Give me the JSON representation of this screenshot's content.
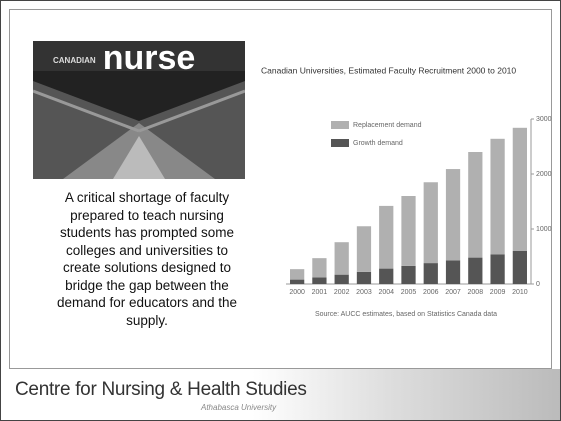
{
  "slide": {
    "cover": {
      "kicker": "CANADIAN",
      "title": "nurse"
    },
    "paragraph": [
      "A critical shortage of faculty",
      "prepared to teach nursing",
      "students has prompted some",
      "colleges and universities to",
      "create solutions designed to",
      "bridge the gap between the",
      "demand for educators and the",
      "supply."
    ],
    "footer": {
      "title": "Centre for Nursing & Health Studies",
      "subtitle": "Athabasca University"
    }
  },
  "chart_data": {
    "type": "stacked_bar",
    "title": "Canadian Universities, Estimated Faculty Recruitment 2000 to 2010",
    "categories": [
      "2000",
      "2001",
      "2002",
      "2003",
      "2004",
      "2005",
      "2006",
      "2007",
      "2008",
      "2009",
      "2010"
    ],
    "series": [
      {
        "name": "Growth demand",
        "color": "#555555",
        "values": [
          80,
          120,
          170,
          220,
          280,
          330,
          380,
          430,
          480,
          540,
          600
        ]
      },
      {
        "name": "Replacement demand",
        "color": "#b0b0b0",
        "values": [
          190,
          350,
          590,
          830,
          1140,
          1270,
          1470,
          1660,
          1920,
          2100,
          2240
        ]
      }
    ],
    "ylim": [
      0,
      3000
    ],
    "yticks": [
      0,
      1000,
      2000,
      3000
    ],
    "grid": false,
    "source": "Source: AUCC estimates, based on Statistics Canada data"
  }
}
